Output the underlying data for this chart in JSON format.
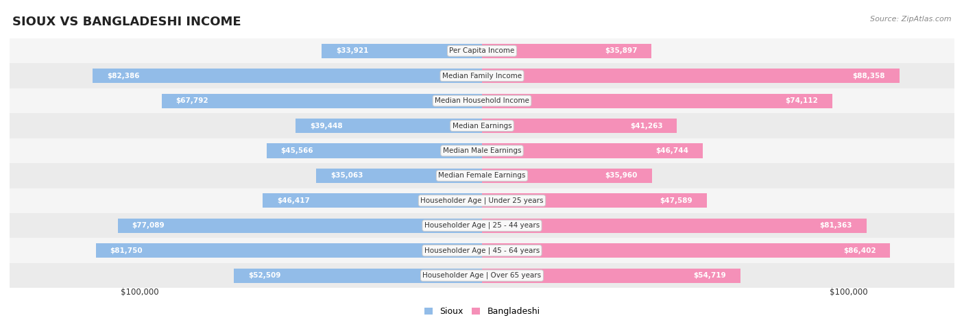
{
  "title": "SIOUX VS BANGLADESHI INCOME",
  "source": "Source: ZipAtlas.com",
  "categories": [
    "Per Capita Income",
    "Median Family Income",
    "Median Household Income",
    "Median Earnings",
    "Median Male Earnings",
    "Median Female Earnings",
    "Householder Age | Under 25 years",
    "Householder Age | 25 - 44 years",
    "Householder Age | 45 - 64 years",
    "Householder Age | Over 65 years"
  ],
  "sioux_values": [
    33921,
    82386,
    67792,
    39448,
    45566,
    35063,
    46417,
    77089,
    81750,
    52509
  ],
  "bangladeshi_values": [
    35897,
    88358,
    74112,
    41263,
    46744,
    35960,
    47589,
    81363,
    86402,
    54719
  ],
  "sioux_labels": [
    "$33,921",
    "$82,386",
    "$67,792",
    "$39,448",
    "$45,566",
    "$35,063",
    "$46,417",
    "$77,089",
    "$81,750",
    "$52,509"
  ],
  "bangladeshi_labels": [
    "$35,897",
    "$88,358",
    "$74,112",
    "$41,263",
    "$46,744",
    "$35,960",
    "$47,589",
    "$81,363",
    "$86,402",
    "$54,719"
  ],
  "max_value": 100000,
  "sioux_color": "#92bce8",
  "bangladeshi_color": "#f590b8",
  "row_bg_even": "#ebebeb",
  "row_bg_odd": "#f5f5f5",
  "background_color": "#ffffff",
  "title_fontsize": 13,
  "label_fontsize": 7.5,
  "value_fontsize": 7.5,
  "legend_labels": [
    "Sioux",
    "Bangladeshi"
  ],
  "threshold_inside": 0.3
}
